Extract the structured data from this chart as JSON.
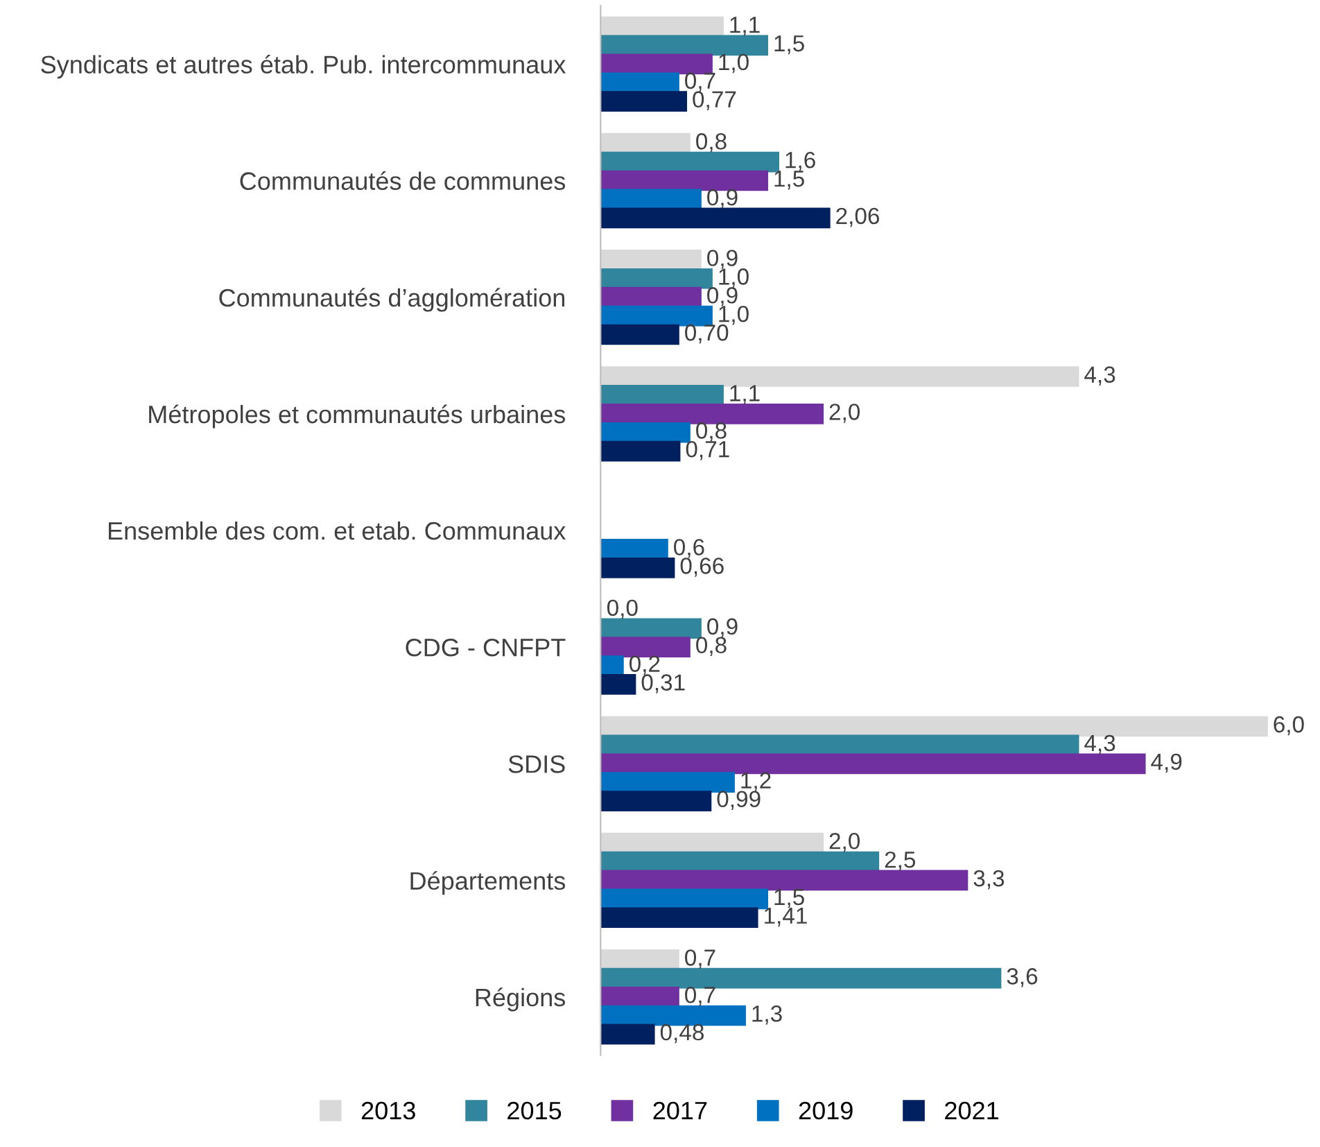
{
  "chart_data": {
    "type": "bar",
    "orientation": "horizontal",
    "categories": [
      "Syndicats et autres étab. Pub. intercommunaux",
      "Communautés de communes",
      "Communautés d’agglomération",
      "Métropoles et communautés urbaines",
      "Ensemble des com. et etab. Communaux",
      "CDG - CNFPT",
      "SDIS",
      "Départements",
      "Régions"
    ],
    "series": [
      {
        "name": "2013",
        "color": "#d9d9d9",
        "values": [
          1.1,
          0.8,
          0.9,
          4.3,
          null,
          0.0,
          6.0,
          2.0,
          0.7
        ],
        "value_labels": [
          "1,1",
          "0,8",
          "0,9",
          "4,3",
          null,
          "0,0",
          "6,0",
          "2,0",
          "0,7"
        ]
      },
      {
        "name": "2015",
        "color": "#31859c",
        "values": [
          1.5,
          1.6,
          1.0,
          1.1,
          null,
          0.9,
          4.3,
          2.5,
          3.6
        ],
        "value_labels": [
          "1,5",
          "1,6",
          "1,0",
          "1,1",
          null,
          "0,9",
          "4,3",
          "2,5",
          "3,6"
        ]
      },
      {
        "name": "2017",
        "color": "#7030a0",
        "values": [
          1.0,
          1.5,
          0.9,
          2.0,
          null,
          0.8,
          4.9,
          3.3,
          0.7
        ],
        "value_labels": [
          "1,0",
          "1,5",
          "0,9",
          "2,0",
          null,
          "0,8",
          "4,9",
          "3,3",
          "0,7"
        ]
      },
      {
        "name": "2019",
        "color": "#0070c0",
        "values": [
          0.7,
          0.9,
          1.0,
          0.8,
          0.6,
          0.2,
          1.2,
          1.5,
          1.3
        ],
        "value_labels": [
          "0,7",
          "0,9",
          "1,0",
          "0,8",
          "0,6",
          "0,2",
          "1,2",
          "1,5",
          "1,3"
        ]
      },
      {
        "name": "2021",
        "color": "#002060",
        "values": [
          0.77,
          2.06,
          0.7,
          0.71,
          0.66,
          0.31,
          0.99,
          1.41,
          0.48
        ],
        "value_labels": [
          "0,77",
          "2,06",
          "0,70",
          "0,71",
          "0,66",
          "0,31",
          "0,99",
          "1,41",
          "0,48"
        ]
      }
    ],
    "legend": "bottom",
    "grid": false
  }
}
